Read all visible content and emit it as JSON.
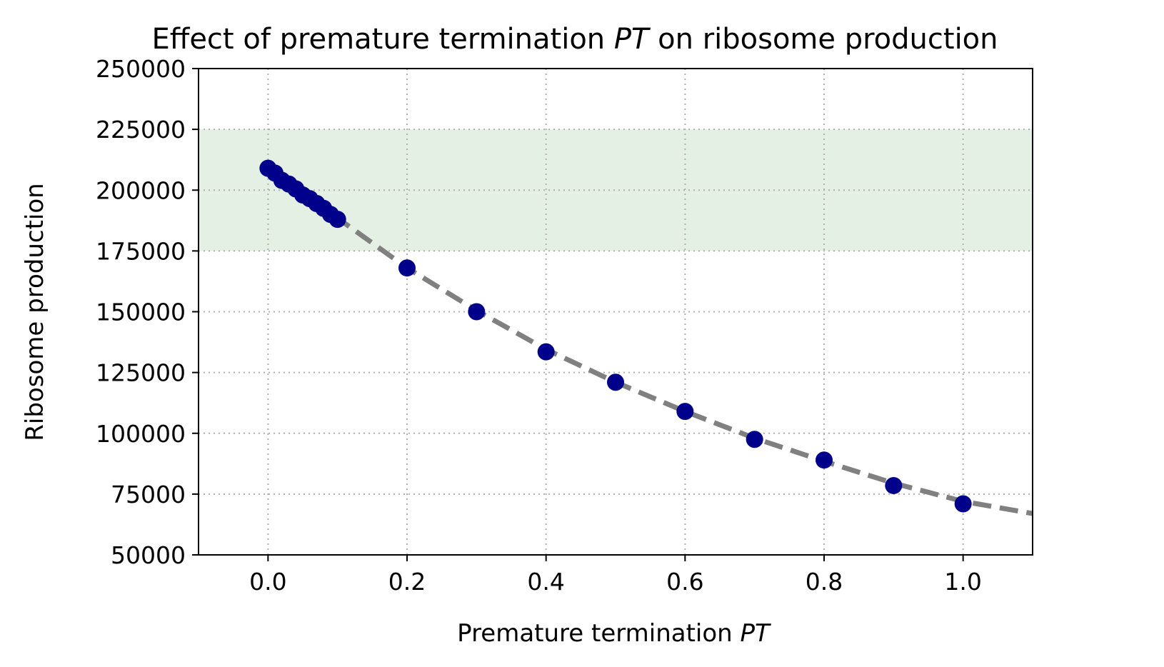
{
  "chart_data": {
    "type": "scatter",
    "title": "Effect of premature termination ",
    "title_italic": "PT",
    "title_tail": " on ribosome production",
    "xlabel": "Premature termination ",
    "xlabel_italic": "PT",
    "ylabel": "Ribosome production",
    "xlim": [
      -0.1,
      1.1
    ],
    "ylim": [
      50000,
      250000
    ],
    "xticks": [
      0.0,
      0.2,
      0.4,
      0.6,
      0.8,
      1.0
    ],
    "xtick_labels": [
      "0.0",
      "0.2",
      "0.4",
      "0.6",
      "0.8",
      "1.0"
    ],
    "yticks": [
      50000,
      75000,
      100000,
      125000,
      150000,
      175000,
      200000,
      225000,
      250000
    ],
    "ytick_labels": [
      "50000",
      "75000",
      "100000",
      "125000",
      "150000",
      "175000",
      "200000",
      "225000",
      "250000"
    ],
    "grid": true,
    "shaded_band": {
      "y_range": [
        175000,
        225000
      ],
      "color": "#e5f0e5"
    },
    "points": {
      "color": "#00008b",
      "x": [
        0.0,
        0.01,
        0.02,
        0.03,
        0.04,
        0.05,
        0.06,
        0.07,
        0.08,
        0.09,
        0.1,
        0.2,
        0.3,
        0.4,
        0.5,
        0.6,
        0.7,
        0.8,
        0.9,
        1.0
      ],
      "y": [
        209000,
        207000,
        204000,
        202500,
        200500,
        198000,
        196500,
        194500,
        192500,
        190000,
        188000,
        168000,
        150000,
        133500,
        121000,
        109000,
        97500,
        89000,
        78500,
        71000
      ]
    },
    "fit_line": {
      "style": "dashed",
      "color": "#808080",
      "x": [
        0.0,
        0.1,
        0.2,
        0.3,
        0.4,
        0.5,
        0.6,
        0.7,
        0.8,
        0.9,
        1.0,
        1.1
      ],
      "y": [
        209000,
        188500,
        168000,
        150500,
        134500,
        121000,
        109000,
        98000,
        88500,
        79500,
        72000,
        67000
      ]
    }
  }
}
